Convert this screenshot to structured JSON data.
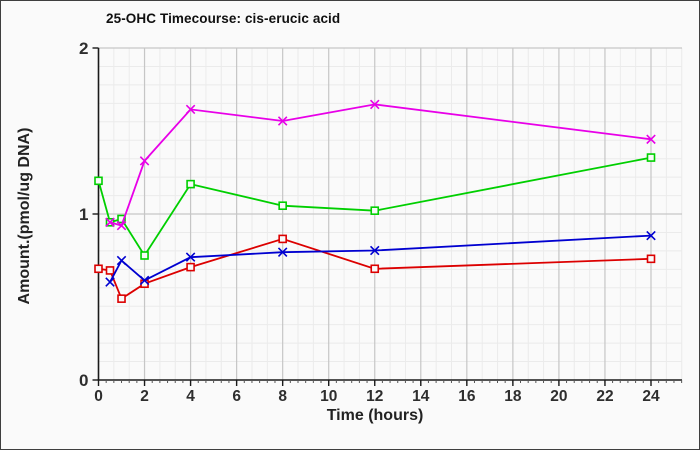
{
  "window": {
    "background": "#fafafa",
    "border_color": "#3f3f3f"
  },
  "chart_data": {
    "type": "line",
    "title": "25-OHC Timecourse: cis-erucic acid",
    "xlabel": "Time (hours)",
    "ylabel": "Amount.(pmol/ug DNA)",
    "xlim": [
      0,
      25.35
    ],
    "ylim": [
      0,
      2
    ],
    "x_ticks": [
      0,
      2,
      4,
      6,
      8,
      10,
      12,
      14,
      16,
      18,
      20,
      22,
      24
    ],
    "y_ticks": [
      0,
      1,
      2
    ],
    "x_minor_grid_step": 0.6667,
    "x_minor_tick_step": 0.3333,
    "y_minor_grid_step": 0.1111,
    "grid": true,
    "legend_position": "none",
    "colors": {
      "major_grid": "#c6c6c6",
      "minor_grid": "#ebebeb",
      "axis": "#1a1a1a"
    },
    "series": [
      {
        "name": "series-green-squares",
        "color": "#00cf00",
        "marker": "square",
        "x": [
          0,
          0.5,
          1,
          2,
          4,
          8,
          12,
          24
        ],
        "y": [
          1.2,
          0.95,
          0.97,
          0.75,
          1.18,
          1.05,
          1.02,
          1.34
        ]
      },
      {
        "name": "series-magenta-x",
        "color": "#e800e8",
        "marker": "x",
        "x": [
          0.5,
          1,
          2,
          4,
          8,
          12,
          24
        ],
        "y": [
          0.95,
          0.93,
          1.32,
          1.63,
          1.56,
          1.66,
          1.45
        ]
      },
      {
        "name": "series-red-squares",
        "color": "#dc0000",
        "marker": "square",
        "x": [
          0,
          0.5,
          1,
          2,
          4,
          8,
          12,
          24
        ],
        "y": [
          0.67,
          0.66,
          0.49,
          0.58,
          0.68,
          0.85,
          0.67,
          0.73
        ]
      },
      {
        "name": "series-blue-x",
        "color": "#0000d0",
        "marker": "x",
        "x": [
          0.5,
          1,
          2,
          4,
          8,
          12,
          24
        ],
        "y": [
          0.59,
          0.72,
          0.6,
          0.74,
          0.77,
          0.78,
          0.87
        ]
      }
    ]
  }
}
